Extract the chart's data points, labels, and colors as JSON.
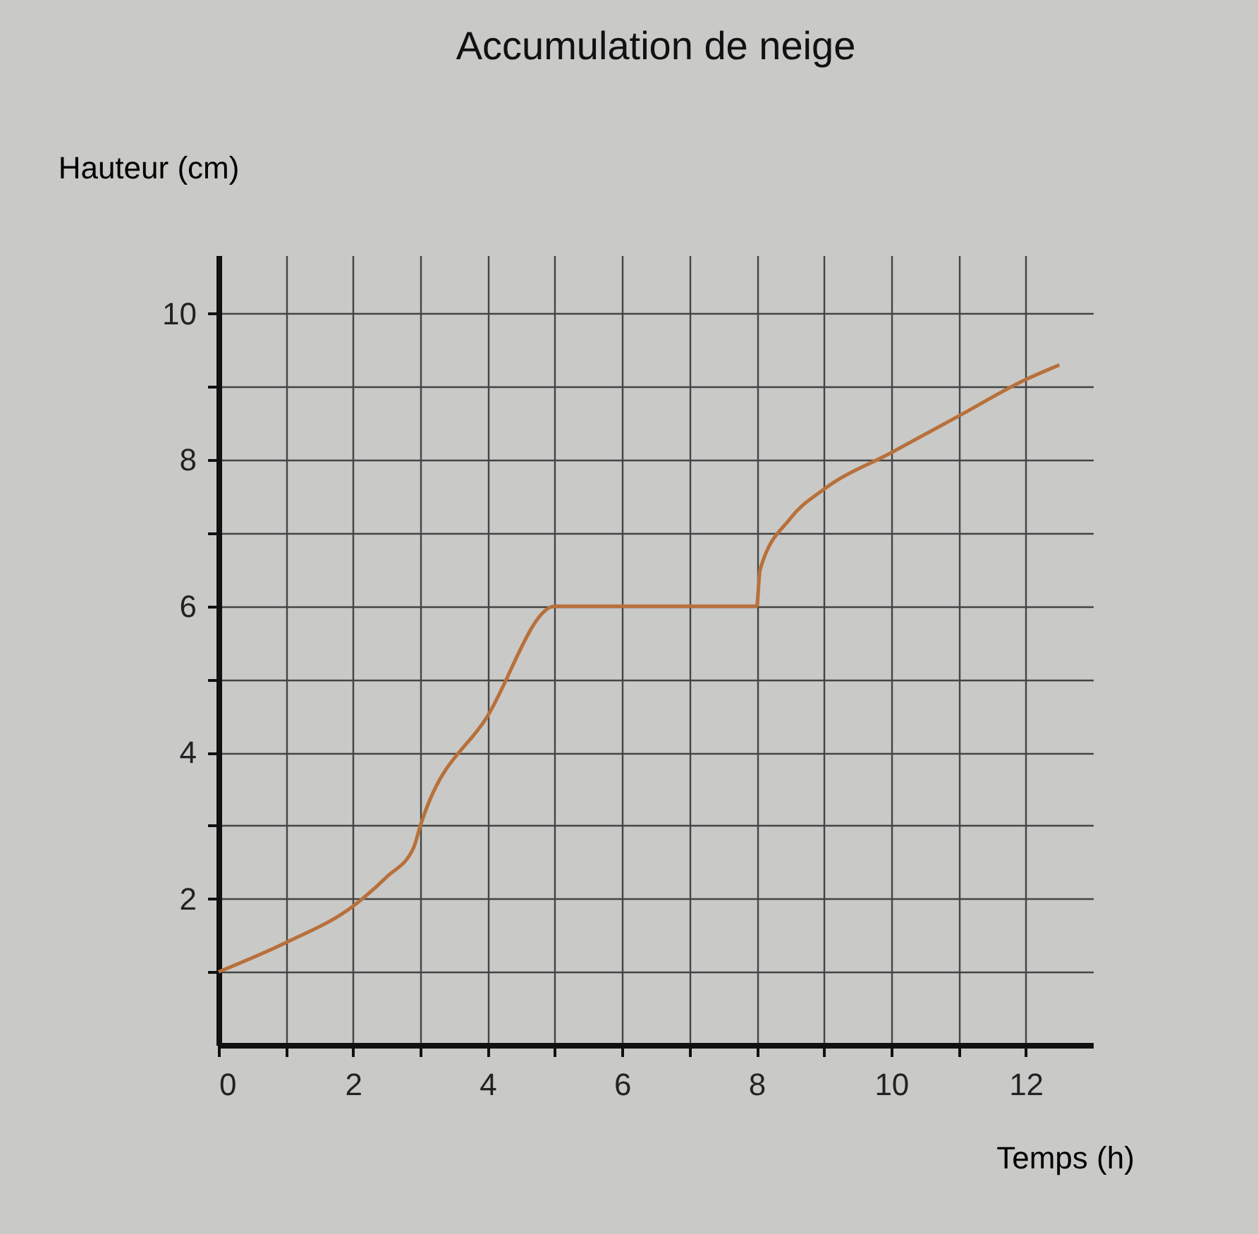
{
  "chart_data": {
    "type": "line",
    "title": "Accumulation de neige",
    "xlabel": "Temps (h)",
    "ylabel": "Hauteur (cm)",
    "x": [
      0,
      1,
      2,
      2.5,
      2.9,
      3,
      4,
      5,
      8,
      8.05,
      8.5,
      9,
      10,
      11,
      12,
      12.5
    ],
    "series": [
      {
        "color": "#b8703a",
        "values": [
          1,
          1.4,
          1.9,
          2.3,
          2.7,
          3,
          4.5,
          6,
          6,
          6.5,
          7.2,
          7.6,
          8.1,
          8.6,
          9.1,
          9.3
        ]
      }
    ],
    "xlim": [
      0,
      13
    ],
    "ylim": [
      0,
      10.8
    ],
    "xticks": [
      0,
      {
        "value": 1,
        "label": null
      },
      2,
      {
        "value": 3,
        "label": null
      },
      4,
      {
        "value": 5,
        "label": null
      },
      6,
      {
        "value": 7,
        "label": null
      },
      8,
      {
        "value": 9,
        "label": null
      },
      10,
      {
        "value": 11,
        "label": null
      },
      12
    ],
    "yticks": [
      {
        "value": 1,
        "label": null
      },
      2,
      {
        "value": 3,
        "label": null
      },
      4,
      {
        "value": 5,
        "label": null
      },
      6,
      {
        "value": 7,
        "label": null
      },
      8,
      {
        "value": 9,
        "label": null
      },
      10
    ],
    "grid": true,
    "marker": "none",
    "line_style": "solid"
  }
}
